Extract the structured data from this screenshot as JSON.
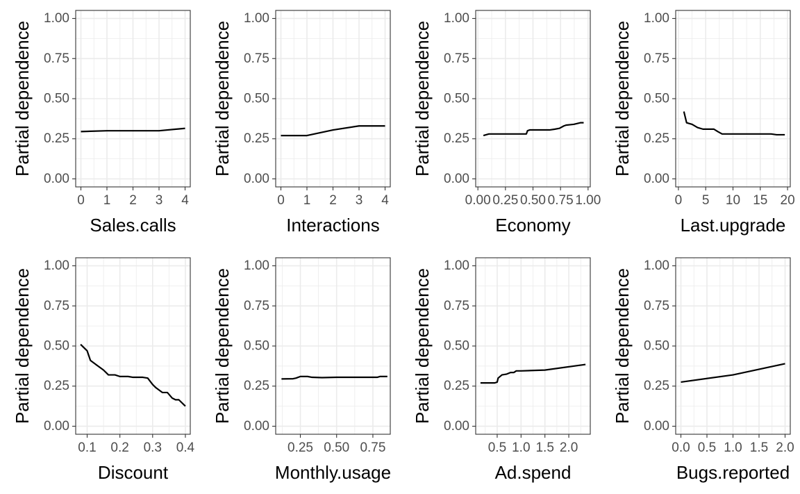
{
  "chart_data": [
    {
      "type": "line",
      "xlabel": "Sales.calls",
      "ylabel": "Partial dependence",
      "xlim": [
        -0.2,
        4.2
      ],
      "ylim": [
        -0.05,
        1.05
      ],
      "x_ticks": [
        0,
        1,
        2,
        3,
        4
      ],
      "x_tick_labels": [
        "0",
        "1",
        "2",
        "3",
        "4"
      ],
      "y_ticks": [
        0,
        0.25,
        0.5,
        0.75,
        1
      ],
      "y_tick_labels": [
        "0.00",
        "0.25",
        "0.50",
        "0.75",
        "1.00"
      ],
      "grid": true,
      "x": [
        0,
        1,
        2,
        3,
        4
      ],
      "y": [
        0.295,
        0.3,
        0.3,
        0.3,
        0.315
      ]
    },
    {
      "type": "line",
      "xlabel": "Interactions",
      "ylabel": "Partial dependence",
      "xlim": [
        -0.2,
        4.2
      ],
      "ylim": [
        -0.05,
        1.05
      ],
      "x_ticks": [
        0,
        1,
        2,
        3,
        4
      ],
      "x_tick_labels": [
        "0",
        "1",
        "2",
        "3",
        "4"
      ],
      "y_ticks": [
        0,
        0.25,
        0.5,
        0.75,
        1
      ],
      "y_tick_labels": [
        "0.00",
        "0.25",
        "0.50",
        "0.75",
        "1.00"
      ],
      "grid": true,
      "x": [
        0,
        1,
        2,
        3,
        4
      ],
      "y": [
        0.27,
        0.27,
        0.305,
        0.33,
        0.33
      ]
    },
    {
      "type": "line",
      "xlabel": "Economy",
      "ylabel": "Partial dependence",
      "xlim": [
        -0.02,
        1.02
      ],
      "ylim": [
        -0.05,
        1.05
      ],
      "x_ticks": [
        0,
        0.25,
        0.5,
        0.75,
        1
      ],
      "x_tick_labels": [
        "0.00",
        "0.25",
        "0.50",
        "0.75",
        "1.00"
      ],
      "y_ticks": [
        0,
        0.25,
        0.5,
        0.75,
        1
      ],
      "y_tick_labels": [
        "0.00",
        "0.25",
        "0.50",
        "0.75",
        "1.00"
      ],
      "grid": true,
      "x": [
        0.05,
        0.1,
        0.15,
        0.44,
        0.45,
        0.47,
        0.65,
        0.7,
        0.74,
        0.78,
        0.8,
        0.84,
        0.87,
        0.9,
        0.93,
        0.96
      ],
      "y": [
        0.27,
        0.28,
        0.28,
        0.28,
        0.3,
        0.305,
        0.305,
        0.31,
        0.315,
        0.33,
        0.335,
        0.338,
        0.34,
        0.345,
        0.35,
        0.35
      ]
    },
    {
      "type": "line",
      "xlabel": "Last.upgrade",
      "ylabel": "Partial dependence",
      "xlim": [
        -0.5,
        20.5
      ],
      "ylim": [
        -0.05,
        1.05
      ],
      "x_ticks": [
        0,
        5,
        10,
        15,
        20
      ],
      "x_tick_labels": [
        "0",
        "5",
        "10",
        "15",
        "20"
      ],
      "y_ticks": [
        0,
        0.25,
        0.5,
        0.75,
        1
      ],
      "y_tick_labels": [
        "0.00",
        "0.25",
        "0.50",
        "0.75",
        "1.00"
      ],
      "grid": true,
      "x": [
        1,
        1.5,
        2.5,
        3.5,
        4.5,
        6.5,
        7.2,
        8.0,
        10,
        12,
        15,
        17,
        18,
        19.5
      ],
      "y": [
        0.42,
        0.35,
        0.34,
        0.32,
        0.31,
        0.31,
        0.295,
        0.28,
        0.28,
        0.28,
        0.28,
        0.28,
        0.275,
        0.275
      ]
    },
    {
      "type": "line",
      "xlabel": "Discount",
      "ylabel": "Partial dependence",
      "xlim": [
        0.065,
        0.415
      ],
      "ylim": [
        -0.05,
        1.05
      ],
      "x_ticks": [
        0.1,
        0.2,
        0.3,
        0.4
      ],
      "x_tick_labels": [
        "0.1",
        "0.2",
        "0.3",
        "0.4"
      ],
      "y_ticks": [
        0,
        0.25,
        0.5,
        0.75,
        1
      ],
      "y_tick_labels": [
        "0.00",
        "0.25",
        "0.50",
        "0.75",
        "1.00"
      ],
      "grid": true,
      "x": [
        0.08,
        0.1,
        0.11,
        0.13,
        0.15,
        0.165,
        0.185,
        0.2,
        0.225,
        0.24,
        0.255,
        0.27,
        0.285,
        0.3,
        0.31,
        0.33,
        0.345,
        0.36,
        0.37,
        0.38,
        0.4
      ],
      "y": [
        0.51,
        0.47,
        0.41,
        0.38,
        0.35,
        0.32,
        0.32,
        0.31,
        0.31,
        0.305,
        0.305,
        0.305,
        0.3,
        0.26,
        0.24,
        0.21,
        0.21,
        0.175,
        0.165,
        0.165,
        0.125
      ]
    },
    {
      "type": "line",
      "xlabel": "Monthly.usage",
      "ylabel": "Partial dependence",
      "xlim": [
        0.08,
        0.87
      ],
      "ylim": [
        -0.05,
        1.05
      ],
      "x_ticks": [
        0.25,
        0.5,
        0.75
      ],
      "x_tick_labels": [
        "0.25",
        "0.50",
        "0.75"
      ],
      "y_ticks": [
        0,
        0.25,
        0.5,
        0.75,
        1
      ],
      "y_tick_labels": [
        "0.00",
        "0.25",
        "0.50",
        "0.75",
        "1.00"
      ],
      "grid": true,
      "x": [
        0.12,
        0.2,
        0.22,
        0.25,
        0.3,
        0.33,
        0.4,
        0.5,
        0.6,
        0.7,
        0.78,
        0.8,
        0.85
      ],
      "y": [
        0.295,
        0.296,
        0.3,
        0.31,
        0.31,
        0.305,
        0.303,
        0.305,
        0.305,
        0.305,
        0.305,
        0.31,
        0.31
      ]
    },
    {
      "type": "line",
      "xlabel": "Ad.spend",
      "ylabel": "Partial dependence",
      "xlim": [
        0.05,
        2.45
      ],
      "ylim": [
        -0.05,
        1.05
      ],
      "x_ticks": [
        0.5,
        1.0,
        1.5,
        2.0
      ],
      "x_tick_labels": [
        "0.5",
        "1.0",
        "1.5",
        "2.0"
      ],
      "y_ticks": [
        0,
        0.25,
        0.5,
        0.75,
        1
      ],
      "y_tick_labels": [
        "0.00",
        "0.25",
        "0.50",
        "0.75",
        "1.00"
      ],
      "grid": true,
      "x": [
        0.15,
        0.3,
        0.45,
        0.5,
        0.52,
        0.6,
        0.7,
        0.78,
        0.85,
        0.9,
        1.0,
        1.5,
        2.35
      ],
      "y": [
        0.27,
        0.27,
        0.27,
        0.275,
        0.3,
        0.32,
        0.325,
        0.335,
        0.335,
        0.345,
        0.345,
        0.35,
        0.385
      ]
    },
    {
      "type": "line",
      "xlabel": "Bugs.reported",
      "ylabel": "Partial dependence",
      "xlim": [
        -0.1,
        2.1
      ],
      "ylim": [
        -0.05,
        1.05
      ],
      "x_ticks": [
        0,
        0.5,
        1.0,
        1.5,
        2.0
      ],
      "x_tick_labels": [
        "0.0",
        "0.5",
        "1.0",
        "1.5",
        "2.0"
      ],
      "y_ticks": [
        0,
        0.25,
        0.5,
        0.75,
        1
      ],
      "y_tick_labels": [
        "0.00",
        "0.25",
        "0.50",
        "0.75",
        "1.00"
      ],
      "grid": true,
      "x": [
        0,
        1,
        2
      ],
      "y": [
        0.275,
        0.32,
        0.39
      ]
    }
  ]
}
